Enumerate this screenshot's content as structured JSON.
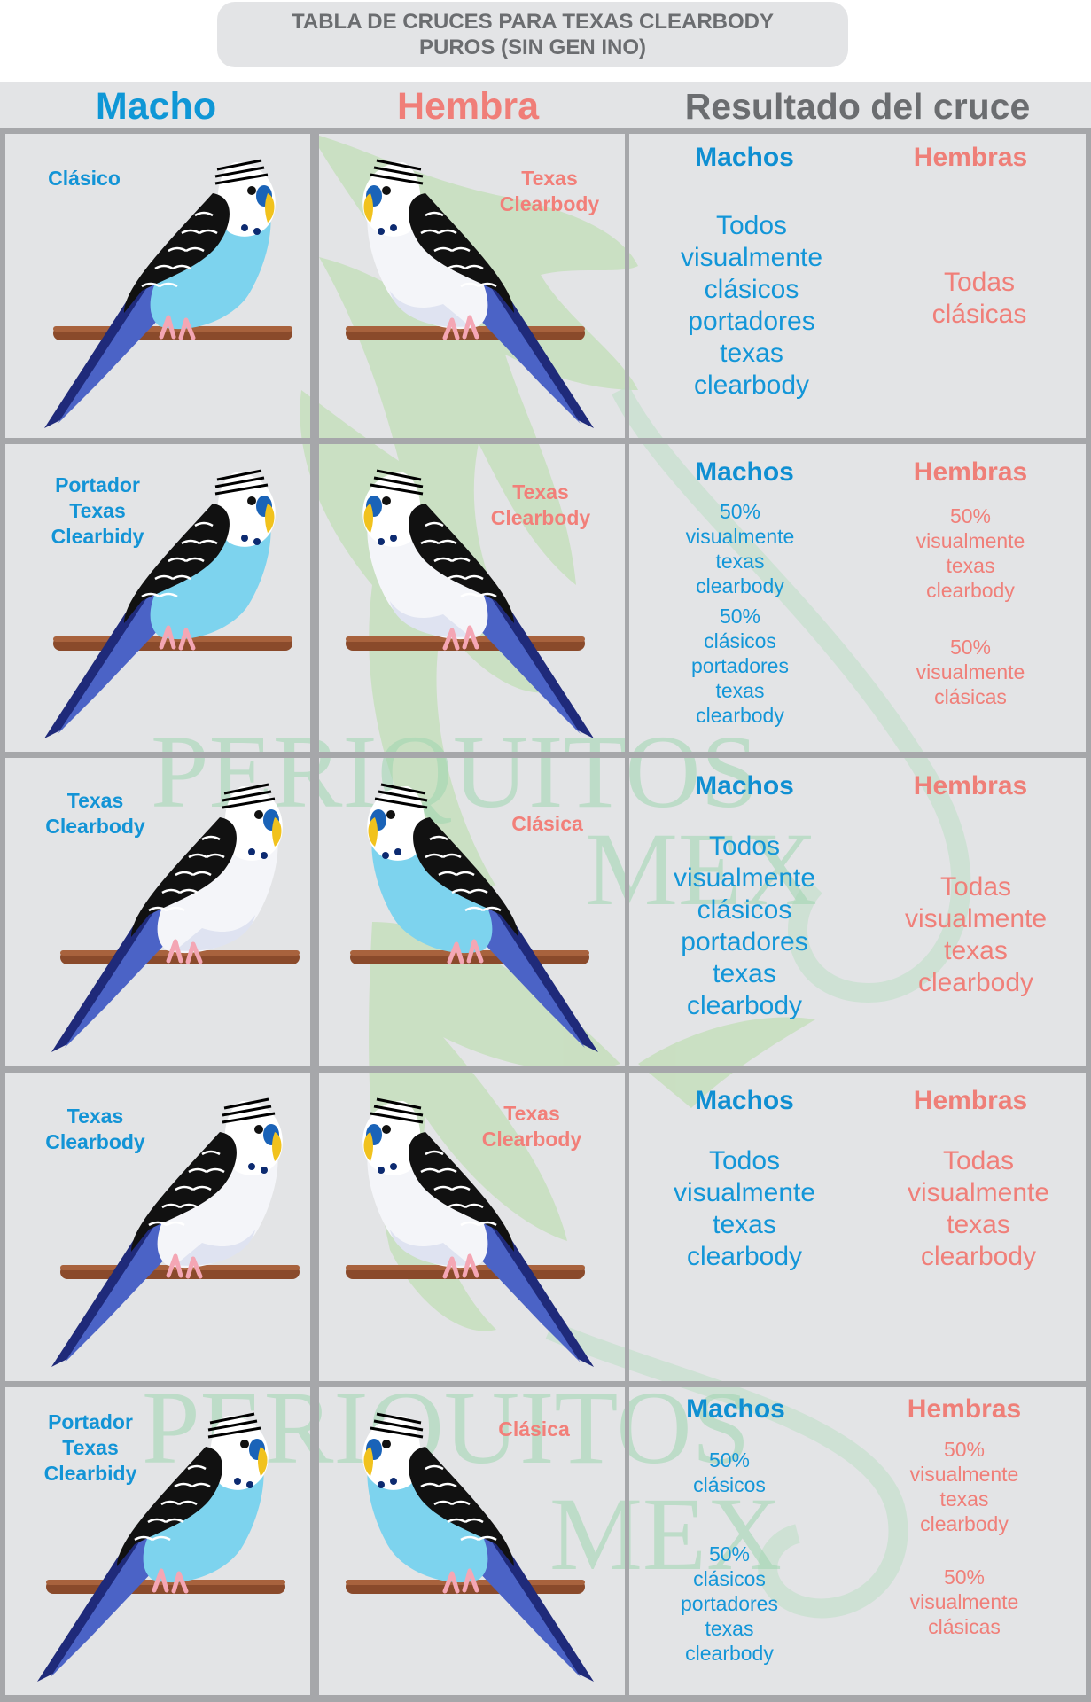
{
  "title": {
    "line1": "TABLA DE CRUCES PARA TEXAS CLEARBODY",
    "line2": "PUROS (SIN GEN INO)"
  },
  "headers": {
    "male": "Macho",
    "female": "Hembra",
    "result": "Resultado del cruce"
  },
  "result_subheaders": {
    "males": "Machos",
    "females": "Hembras"
  },
  "watermark": {
    "line1": "PERIQUITOS",
    "line2": "MEX"
  },
  "colors": {
    "male_blue": "#1394d6",
    "female_pink": "#f07e78",
    "background_gray": "#e3e4e6",
    "grid_gray": "#a6a7aa",
    "sky_body": "#7dd3ee",
    "white_body": "#f4f5f9",
    "tail": "#2b3b8e",
    "perch": "#8a4a2b",
    "watermark_green": "#b8dcaa"
  },
  "rows": [
    {
      "male": {
        "label_lines": [
          "Clásico"
        ],
        "variety": "classic"
      },
      "female": {
        "label_lines": [
          "Texas",
          "Clearbody"
        ],
        "variety": "clearbody"
      },
      "males_result": [
        "Todos",
        "visualmente",
        "clásicos",
        "portadores",
        "texas",
        "clearbody"
      ],
      "females_result": [
        "Todas",
        "clásicas"
      ],
      "males_size": "big",
      "females_size": "big"
    },
    {
      "male": {
        "label_lines": [
          "Portador",
          "Texas",
          "Clearbidy"
        ],
        "variety": "classic"
      },
      "female": {
        "label_lines": [
          "Texas",
          "Clearbody"
        ],
        "variety": "clearbody"
      },
      "males_result": [
        "50%",
        "visualmente",
        "texas",
        "clearbody",
        "",
        "50%",
        "clásicos",
        "portadores",
        "texas",
        "clearbody"
      ],
      "females_result": [
        "50%",
        "visualmente",
        "texas",
        "clearbody",
        "",
        "",
        "50%",
        "visualmente",
        "clásicas"
      ],
      "males_size": "small",
      "females_size": "small"
    },
    {
      "male": {
        "label_lines": [
          "Texas",
          "Clearbody"
        ],
        "variety": "clearbody"
      },
      "female": {
        "label_lines": [
          "Clásica"
        ],
        "variety": "classic"
      },
      "males_result": [
        "Todos",
        "visualmente",
        "clásicos",
        "portadores",
        "texas",
        "clearbody"
      ],
      "females_result": [
        "Todas",
        "visualmente",
        "texas",
        "clearbody"
      ],
      "males_size": "big",
      "females_size": "big"
    },
    {
      "male": {
        "label_lines": [
          "Texas",
          "Clearbody"
        ],
        "variety": "clearbody"
      },
      "female": {
        "label_lines": [
          "Texas",
          "Clearbody"
        ],
        "variety": "clearbody"
      },
      "males_result": [
        "Todos",
        "visualmente",
        "texas",
        "clearbody"
      ],
      "females_result": [
        "Todas",
        "visualmente",
        "texas",
        "clearbody"
      ],
      "males_size": "big",
      "females_size": "big"
    },
    {
      "male": {
        "label_lines": [
          "Portador",
          "Texas",
          "Clearbidy"
        ],
        "variety": "classic"
      },
      "female": {
        "label_lines": [
          "Clásica"
        ],
        "variety": "classic"
      },
      "males_result": [
        "50%",
        "clásicos",
        "",
        "",
        "50%",
        "clásicos",
        "portadores",
        "texas",
        "clearbody"
      ],
      "females_result": [
        "50%",
        "visualmente",
        "texas",
        "clearbody",
        "",
        "50%",
        "visualmente",
        "clásicas"
      ],
      "males_size": "small",
      "females_size": "small"
    }
  ]
}
